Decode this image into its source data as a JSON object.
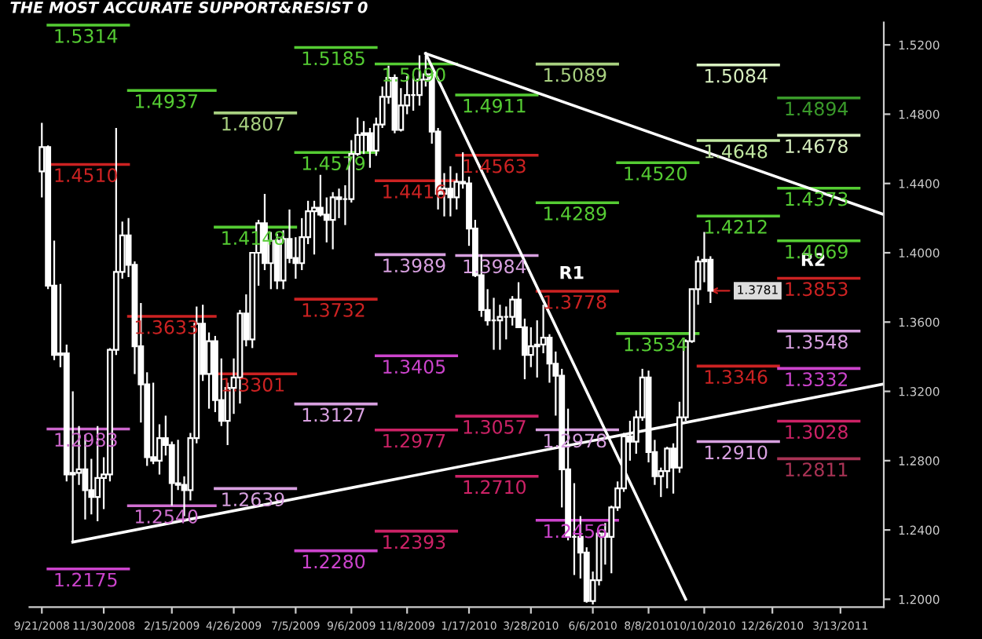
{
  "chart_data": {
    "type": "candlestick",
    "title": "THE MOST ACCURATE SUPPORT&RESIST 0",
    "color": "#ffffff",
    "x": [
      "2008-09-21",
      "2008-09-28",
      "2008-10-05",
      "2008-10-12",
      "2008-10-19",
      "2008-10-26",
      "2008-11-02",
      "2008-11-09",
      "2008-11-16",
      "2008-11-23",
      "2008-11-30",
      "2008-12-07",
      "2008-12-14",
      "2008-12-21",
      "2008-12-28",
      "2009-01-04",
      "2009-01-11",
      "2009-01-18",
      "2009-01-25",
      "2009-02-01",
      "2009-02-08",
      "2009-02-15",
      "2009-02-22",
      "2009-03-01",
      "2009-03-08",
      "2009-03-15",
      "2009-03-22",
      "2009-03-29",
      "2009-04-05",
      "2009-04-12",
      "2009-04-19",
      "2009-04-26",
      "2009-05-03",
      "2009-05-10",
      "2009-05-17",
      "2009-05-24",
      "2009-05-31",
      "2009-06-07",
      "2009-06-14",
      "2009-06-21",
      "2009-06-28",
      "2009-07-05",
      "2009-07-12",
      "2009-07-19",
      "2009-07-26",
      "2009-08-02",
      "2009-08-09",
      "2009-08-16",
      "2009-08-23",
      "2009-08-30",
      "2009-09-06",
      "2009-09-13",
      "2009-09-20",
      "2009-09-27",
      "2009-10-04",
      "2009-10-11",
      "2009-10-18",
      "2009-10-25",
      "2009-11-01",
      "2009-11-08",
      "2009-11-15",
      "2009-11-22",
      "2009-11-29",
      "2009-12-06",
      "2009-12-13",
      "2009-12-20",
      "2009-12-27",
      "2010-01-03",
      "2010-01-10",
      "2010-01-17",
      "2010-01-24",
      "2010-01-31",
      "2010-02-07",
      "2010-02-14",
      "2010-02-21",
      "2010-02-28",
      "2010-03-07",
      "2010-03-14",
      "2010-03-21",
      "2010-03-28",
      "2010-04-04",
      "2010-04-11",
      "2010-04-18",
      "2010-04-25",
      "2010-05-02",
      "2010-05-09",
      "2010-05-16",
      "2010-05-23",
      "2010-05-30",
      "2010-06-06",
      "2010-06-13",
      "2010-06-20",
      "2010-06-27",
      "2010-07-04",
      "2010-07-11",
      "2010-07-18",
      "2010-07-25",
      "2010-08-01",
      "2010-08-08",
      "2010-08-15",
      "2010-08-22",
      "2010-08-29",
      "2010-09-05",
      "2010-09-12",
      "2010-09-19",
      "2010-09-26",
      "2010-10-03",
      "2010-10-10",
      "2010-10-17"
    ],
    "ohlc": [
      [
        1.447,
        1.475,
        1.432,
        1.461
      ],
      [
        1.461,
        1.462,
        1.379,
        1.381
      ],
      [
        1.381,
        1.407,
        1.338,
        1.341
      ],
      [
        1.341,
        1.382,
        1.334,
        1.342
      ],
      [
        1.342,
        1.347,
        1.268,
        1.272
      ],
      [
        1.272,
        1.32,
        1.233,
        1.273
      ],
      [
        1.273,
        1.3,
        1.266,
        1.275
      ],
      [
        1.275,
        1.295,
        1.246,
        1.263
      ],
      [
        1.263,
        1.281,
        1.249,
        1.259
      ],
      [
        1.259,
        1.3,
        1.245,
        1.27
      ],
      [
        1.27,
        1.282,
        1.252,
        1.272
      ],
      [
        1.272,
        1.345,
        1.268,
        1.344
      ],
      [
        1.344,
        1.472,
        1.341,
        1.389
      ],
      [
        1.389,
        1.418,
        1.385,
        1.41
      ],
      [
        1.41,
        1.42,
        1.386,
        1.393
      ],
      [
        1.393,
        1.395,
        1.33,
        1.346
      ],
      [
        1.346,
        1.371,
        1.302,
        1.324
      ],
      [
        1.324,
        1.331,
        1.277,
        1.282
      ],
      [
        1.282,
        1.325,
        1.278,
        1.28
      ],
      [
        1.28,
        1.301,
        1.272,
        1.293
      ],
      [
        1.293,
        1.306,
        1.283,
        1.289
      ],
      [
        1.289,
        1.291,
        1.254,
        1.267
      ],
      [
        1.267,
        1.292,
        1.263,
        1.266
      ],
      [
        1.266,
        1.271,
        1.248,
        1.263
      ],
      [
        1.263,
        1.296,
        1.257,
        1.293
      ],
      [
        1.293,
        1.369,
        1.29,
        1.359
      ],
      [
        1.359,
        1.37,
        1.326,
        1.33
      ],
      [
        1.33,
        1.354,
        1.31,
        1.349
      ],
      [
        1.349,
        1.352,
        1.308,
        1.315
      ],
      [
        1.315,
        1.339,
        1.3,
        1.303
      ],
      [
        1.303,
        1.325,
        1.289,
        1.322
      ],
      [
        1.322,
        1.339,
        1.307,
        1.328
      ],
      [
        1.328,
        1.367,
        1.313,
        1.365
      ],
      [
        1.365,
        1.376,
        1.346,
        1.35
      ],
      [
        1.35,
        1.4,
        1.345,
        1.4
      ],
      [
        1.4,
        1.419,
        1.381,
        1.417
      ],
      [
        1.417,
        1.434,
        1.39,
        1.394
      ],
      [
        1.394,
        1.412,
        1.379,
        1.407
      ],
      [
        1.407,
        1.411,
        1.379,
        1.384
      ],
      [
        1.384,
        1.413,
        1.379,
        1.408
      ],
      [
        1.408,
        1.425,
        1.394,
        1.397
      ],
      [
        1.397,
        1.409,
        1.385,
        1.394
      ],
      [
        1.394,
        1.42,
        1.39,
        1.409
      ],
      [
        1.409,
        1.43,
        1.405,
        1.424
      ],
      [
        1.424,
        1.43,
        1.399,
        1.426
      ],
      [
        1.426,
        1.445,
        1.421,
        1.422
      ],
      [
        1.422,
        1.432,
        1.406,
        1.419
      ],
      [
        1.419,
        1.435,
        1.402,
        1.432
      ],
      [
        1.432,
        1.437,
        1.42,
        1.431
      ],
      [
        1.431,
        1.439,
        1.416,
        1.431
      ],
      [
        1.431,
        1.465,
        1.429,
        1.457
      ],
      [
        1.457,
        1.478,
        1.456,
        1.468
      ],
      [
        1.468,
        1.476,
        1.457,
        1.469
      ],
      [
        1.469,
        1.472,
        1.449,
        1.459
      ],
      [
        1.459,
        1.478,
        1.456,
        1.474
      ],
      [
        1.474,
        1.496,
        1.472,
        1.49
      ],
      [
        1.49,
        1.508,
        1.486,
        1.501
      ],
      [
        1.501,
        1.503,
        1.469,
        1.471
      ],
      [
        1.471,
        1.495,
        1.47,
        1.485
      ],
      [
        1.485,
        1.502,
        1.48,
        1.491
      ],
      [
        1.491,
        1.502,
        1.482,
        1.491
      ],
      [
        1.491,
        1.514,
        1.485,
        1.5
      ],
      [
        1.5,
        1.514,
        1.496,
        1.503
      ],
      [
        1.503,
        1.504,
        1.463,
        1.47
      ],
      [
        1.47,
        1.472,
        1.425,
        1.434
      ],
      [
        1.434,
        1.446,
        1.421,
        1.437
      ],
      [
        1.437,
        1.45,
        1.421,
        1.432
      ],
      [
        1.432,
        1.446,
        1.425,
        1.441
      ],
      [
        1.441,
        1.458,
        1.437,
        1.44
      ],
      [
        1.44,
        1.444,
        1.404,
        1.414
      ],
      [
        1.414,
        1.419,
        1.386,
        1.387
      ],
      [
        1.387,
        1.399,
        1.363,
        1.367
      ],
      [
        1.367,
        1.379,
        1.358,
        1.361
      ],
      [
        1.361,
        1.374,
        1.344,
        1.361
      ],
      [
        1.361,
        1.37,
        1.344,
        1.363
      ],
      [
        1.363,
        1.369,
        1.35,
        1.363
      ],
      [
        1.363,
        1.375,
        1.358,
        1.373
      ],
      [
        1.373,
        1.383,
        1.357,
        1.357
      ],
      [
        1.357,
        1.362,
        1.327,
        1.341
      ],
      [
        1.341,
        1.357,
        1.334,
        1.346
      ],
      [
        1.346,
        1.361,
        1.328,
        1.347
      ],
      [
        1.347,
        1.37,
        1.342,
        1.351
      ],
      [
        1.351,
        1.353,
        1.325,
        1.336
      ],
      [
        1.336,
        1.343,
        1.306,
        1.329
      ],
      [
        1.329,
        1.333,
        1.253,
        1.275
      ],
      [
        1.275,
        1.31,
        1.234,
        1.236
      ],
      [
        1.236,
        1.267,
        1.214,
        1.236
      ],
      [
        1.236,
        1.248,
        1.212,
        1.227
      ],
      [
        1.227,
        1.23,
        1.198,
        1.199
      ],
      [
        1.199,
        1.216,
        1.197,
        1.211
      ],
      [
        1.211,
        1.239,
        1.208,
        1.238
      ],
      [
        1.238,
        1.244,
        1.22,
        1.236
      ],
      [
        1.236,
        1.254,
        1.215,
        1.253
      ],
      [
        1.253,
        1.268,
        1.251,
        1.264
      ],
      [
        1.264,
        1.296,
        1.262,
        1.294
      ],
      [
        1.294,
        1.303,
        1.28,
        1.291
      ],
      [
        1.291,
        1.309,
        1.284,
        1.305
      ],
      [
        1.305,
        1.333,
        1.303,
        1.328
      ],
      [
        1.328,
        1.332,
        1.279,
        1.285
      ],
      [
        1.285,
        1.292,
        1.266,
        1.271
      ],
      [
        1.271,
        1.276,
        1.259,
        1.274
      ],
      [
        1.274,
        1.288,
        1.264,
        1.287
      ],
      [
        1.287,
        1.29,
        1.261,
        1.276
      ],
      [
        1.276,
        1.314,
        1.273,
        1.305
      ],
      [
        1.305,
        1.35,
        1.303,
        1.349
      ],
      [
        1.349,
        1.379,
        1.348,
        1.379
      ],
      [
        1.379,
        1.398,
        1.37,
        1.395
      ],
      [
        1.395,
        1.412,
        1.383,
        1.396
      ],
      [
        1.396,
        1.398,
        1.371,
        1.3781
      ]
    ],
    "series": [
      {
        "type": "line",
        "x": [
          "2008-09-28",
          "2008-12-28"
        ],
        "values": [
          1.5314,
          1.5314
        ],
        "color": "#55cc33",
        "value_labels": [
          "1.5314",
          null
        ]
      },
      {
        "type": "line",
        "x": [
          "2008-09-28",
          "2008-12-28"
        ],
        "values": [
          1.451,
          1.451
        ],
        "color": "#cc2222",
        "value_labels": [
          "1.4510",
          null
        ]
      },
      {
        "type": "line",
        "x": [
          "2008-09-28",
          "2008-12-28"
        ],
        "values": [
          1.2983,
          1.2983
        ],
        "color": "#cc66cc",
        "value_labels": [
          "1.2983",
          null
        ]
      },
      {
        "type": "line",
        "x": [
          "2008-09-28",
          "2008-12-28"
        ],
        "values": [
          1.2175,
          1.2175
        ],
        "color": "#cc44cc",
        "value_labels": [
          "1.2175",
          null
        ]
      },
      {
        "type": "line",
        "x": [
          "2008-12-28",
          "2009-04-05"
        ],
        "values": [
          1.4937,
          1.4937
        ],
        "color": "#55cc33",
        "value_labels": [
          "1.4937",
          null
        ]
      },
      {
        "type": "line",
        "x": [
          "2008-12-28",
          "2009-04-05"
        ],
        "values": [
          1.3633,
          1.3633
        ],
        "color": "#cc2222",
        "value_labels": [
          "1.3633",
          null
        ]
      },
      {
        "type": "line",
        "x": [
          "2008-12-28",
          "2009-04-05"
        ],
        "values": [
          1.254,
          1.254
        ],
        "color": "#d070d0",
        "value_labels": [
          "1.2540",
          null
        ]
      },
      {
        "type": "line",
        "x": [
          "2009-04-05",
          "2009-07-05"
        ],
        "values": [
          1.4807,
          1.4807
        ],
        "color": "#a8d080",
        "value_labels": [
          "1.4807",
          null
        ]
      },
      {
        "type": "line",
        "x": [
          "2009-04-05",
          "2009-07-05"
        ],
        "values": [
          1.4148,
          1.4148
        ],
        "color": "#55cc33",
        "value_labels": [
          "1.4148",
          null
        ]
      },
      {
        "type": "line",
        "x": [
          "2009-04-05",
          "2009-07-05"
        ],
        "values": [
          1.3301,
          1.3301
        ],
        "color": "#cc2222",
        "value_labels": [
          "1.3301",
          null
        ]
      },
      {
        "type": "line",
        "x": [
          "2009-04-05",
          "2009-07-05"
        ],
        "values": [
          1.2639,
          1.2639
        ],
        "color": "#d8a0e0",
        "value_labels": [
          "1.2639",
          null
        ]
      },
      {
        "type": "line",
        "x": [
          "2009-07-05",
          "2009-10-04"
        ],
        "values": [
          1.5185,
          1.5185
        ],
        "color": "#55cc33",
        "value_labels": [
          "1.5185",
          null
        ]
      },
      {
        "type": "line",
        "x": [
          "2009-07-05",
          "2009-10-04"
        ],
        "values": [
          1.4579,
          1.4579
        ],
        "color": "#55cc33",
        "value_labels": [
          "1.4579",
          null
        ]
      },
      {
        "type": "line",
        "x": [
          "2009-07-05",
          "2009-10-04"
        ],
        "values": [
          1.3732,
          1.3732
        ],
        "color": "#cc2222",
        "value_labels": [
          "1.3732",
          null
        ]
      },
      {
        "type": "line",
        "x": [
          "2009-07-05",
          "2009-10-04"
        ],
        "values": [
          1.3127,
          1.3127
        ],
        "color": "#d8a0e0",
        "value_labels": [
          "1.3127",
          null
        ]
      },
      {
        "type": "line",
        "x": [
          "2009-07-05",
          "2009-10-04"
        ],
        "values": [
          1.228,
          1.228
        ],
        "color": "#cc44cc",
        "value_labels": [
          "1.2280",
          null
        ]
      },
      {
        "type": "line",
        "x": [
          "2009-10-04",
          "2010-01-03"
        ],
        "values": [
          1.509,
          1.509
        ],
        "color": "#55cc33",
        "value_labels": [
          "1.5090",
          null
        ]
      },
      {
        "type": "line",
        "x": [
          "2009-10-04",
          "2010-01-03"
        ],
        "values": [
          1.4416,
          1.4416
        ],
        "color": "#cc2222",
        "value_labels": [
          "1.4416",
          null
        ]
      },
      {
        "type": "line",
        "x": [
          "2009-10-04",
          "2009-12-20"
        ],
        "values": [
          1.3989,
          1.3989
        ],
        "color": "#d8a0e0",
        "value_labels": [
          "1.3989",
          null
        ]
      },
      {
        "type": "line",
        "x": [
          "2009-10-04",
          "2010-01-03"
        ],
        "values": [
          1.3405,
          1.3405
        ],
        "color": "#cc44cc",
        "value_labels": [
          "1.3405",
          null
        ]
      },
      {
        "type": "line",
        "x": [
          "2009-10-04",
          "2010-01-03"
        ],
        "values": [
          1.2977,
          1.2977
        ],
        "color": "#cc2266",
        "value_labels": [
          "1.2977",
          null
        ]
      },
      {
        "type": "line",
        "x": [
          "2009-10-04",
          "2010-01-03"
        ],
        "values": [
          1.2393,
          1.2393
        ],
        "color": "#cc2266",
        "value_labels": [
          "1.2393",
          null
        ]
      },
      {
        "type": "line",
        "x": [
          "2010-01-03",
          "2010-04-04"
        ],
        "values": [
          1.4911,
          1.4911
        ],
        "color": "#55cc33",
        "value_labels": [
          "1.4911",
          null
        ]
      },
      {
        "type": "line",
        "x": [
          "2010-01-03",
          "2010-04-04"
        ],
        "values": [
          1.4563,
          1.4563
        ],
        "color": "#cc2222",
        "value_labels": [
          "1.4563",
          null
        ]
      },
      {
        "type": "line",
        "x": [
          "2010-01-03",
          "2010-04-04"
        ],
        "values": [
          1.3984,
          1.3984
        ],
        "color": "#d8a0e0",
        "value_labels": [
          "1.3984",
          null
        ]
      },
      {
        "type": "line",
        "x": [
          "2010-01-03",
          "2010-04-04"
        ],
        "values": [
          1.3057,
          1.3057
        ],
        "color": "#cc2266",
        "value_labels": [
          "1.3057",
          null
        ]
      },
      {
        "type": "line",
        "x": [
          "2010-01-03",
          "2010-04-04"
        ],
        "values": [
          1.271,
          1.271
        ],
        "color": "#cc2266",
        "value_labels": [
          "1.2710",
          null
        ]
      },
      {
        "type": "line",
        "x": [
          "2010-04-04",
          "2010-07-04"
        ],
        "values": [
          1.5089,
          1.5089
        ],
        "color": "#a8d080",
        "value_labels": [
          "1.5089",
          null
        ]
      },
      {
        "type": "line",
        "x": [
          "2010-04-04",
          "2010-07-04"
        ],
        "values": [
          1.4289,
          1.4289
        ],
        "color": "#55cc33",
        "value_labels": [
          "1.4289",
          null
        ]
      },
      {
        "type": "line",
        "x": [
          "2010-04-04",
          "2010-07-04"
        ],
        "values": [
          1.3778,
          1.3778
        ],
        "color": "#cc2222",
        "value_labels": [
          "1.3778",
          null
        ]
      },
      {
        "type": "line",
        "x": [
          "2010-04-04",
          "2010-07-04"
        ],
        "values": [
          1.2978,
          1.2978
        ],
        "color": "#d8a0e0",
        "value_labels": [
          "1.2978",
          null
        ]
      },
      {
        "type": "line",
        "x": [
          "2010-04-04",
          "2010-07-04"
        ],
        "values": [
          1.2456,
          1.2456
        ],
        "color": "#cc44cc",
        "value_labels": [
          "1.2456",
          null
        ]
      },
      {
        "type": "line",
        "x": [
          "2010-07-04",
          "2010-10-03"
        ],
        "values": [
          1.452,
          1.452
        ],
        "color": "#55cc33",
        "value_labels": [
          "1.4520",
          null
        ]
      },
      {
        "type": "line",
        "x": [
          "2010-07-04",
          "2010-10-03"
        ],
        "values": [
          1.3534,
          1.3534
        ],
        "color": "#55cc33",
        "value_labels": [
          "1.3534",
          null
        ]
      },
      {
        "type": "line",
        "x": [
          "2010-10-03",
          "2011-01-02"
        ],
        "values": [
          1.5084,
          1.5084
        ],
        "color": "#d8f0c0",
        "value_labels": [
          "1.5084",
          null
        ]
      },
      {
        "type": "line",
        "x": [
          "2010-10-03",
          "2011-01-02"
        ],
        "values": [
          1.4648,
          1.4648
        ],
        "color": "#c0e8a0",
        "value_labels": [
          "1.4648",
          null
        ]
      },
      {
        "type": "line",
        "x": [
          "2010-10-03",
          "2011-01-02"
        ],
        "values": [
          1.4212,
          1.4212
        ],
        "color": "#55cc33",
        "value_labels": [
          "1.4212",
          null
        ]
      },
      {
        "type": "line",
        "x": [
          "2010-10-03",
          "2011-01-02"
        ],
        "values": [
          1.3346,
          1.3346
        ],
        "color": "#cc2222",
        "value_labels": [
          "1.3346",
          null
        ]
      },
      {
        "type": "line",
        "x": [
          "2010-10-03",
          "2011-01-02"
        ],
        "values": [
          1.291,
          1.291
        ],
        "color": "#d8a0e0",
        "value_labels": [
          "1.2910",
          null
        ]
      },
      {
        "type": "line",
        "x": [
          "2011-01-02",
          "2011-04-03"
        ],
        "values": [
          1.4894,
          1.4894
        ],
        "color": "#3a9a2a",
        "value_labels": [
          "1.4894",
          null
        ]
      },
      {
        "type": "line",
        "x": [
          "2011-01-02",
          "2011-04-03"
        ],
        "values": [
          1.4678,
          1.4678
        ],
        "color": "#d8f0c0",
        "value_labels": [
          "1.4678",
          null
        ]
      },
      {
        "type": "line",
        "x": [
          "2011-01-02",
          "2011-04-03"
        ],
        "values": [
          1.4373,
          1.4373
        ],
        "color": "#55cc33",
        "value_labels": [
          "1.4373",
          null
        ]
      },
      {
        "type": "line",
        "x": [
          "2011-01-02",
          "2011-04-03"
        ],
        "values": [
          1.4069,
          1.4069
        ],
        "color": "#55cc33",
        "value_labels": [
          "1.4069",
          null
        ]
      },
      {
        "type": "line",
        "x": [
          "2011-01-02",
          "2011-04-03"
        ],
        "values": [
          1.3853,
          1.3853
        ],
        "color": "#cc2222",
        "value_labels": [
          "1.3853",
          null
        ]
      },
      {
        "type": "line",
        "x": [
          "2011-01-02",
          "2011-04-03"
        ],
        "values": [
          1.3548,
          1.3548
        ],
        "color": "#d8a0e0",
        "value_labels": [
          "1.3548",
          null
        ]
      },
      {
        "type": "line",
        "x": [
          "2011-01-02",
          "2011-04-03"
        ],
        "values": [
          1.3332,
          1.3332
        ],
        "color": "#cc44cc",
        "value_labels": [
          "1.3332",
          null
        ]
      },
      {
        "type": "line",
        "x": [
          "2011-01-02",
          "2011-04-03"
        ],
        "values": [
          1.3028,
          1.3028
        ],
        "color": "#cc2266",
        "value_labels": [
          "1.3028",
          null
        ]
      },
      {
        "type": "line",
        "x": [
          "2011-01-02",
          "2011-04-03"
        ],
        "values": [
          1.2811,
          1.2811
        ],
        "color": "#aa3355",
        "value_labels": [
          "1.2811",
          null
        ]
      },
      {
        "type": "line",
        "x": [
          "2009-11-29",
          "2011-05-01"
        ],
        "values": [
          1.515,
          1.4221
        ],
        "color": "#ffffff"
      },
      {
        "type": "line",
        "x": [
          "2009-11-29",
          "2010-09-19"
        ],
        "values": [
          1.515,
          1.2
        ],
        "color": "#ffffff"
      },
      {
        "type": "line",
        "x": [
          "2008-10-26",
          "2011-05-01"
        ],
        "values": [
          1.233,
          1.3243
        ],
        "color": "#ffffff"
      }
    ],
    "annotations": [
      {
        "text": "R1",
        "x": "2010-04-04",
        "y": 1.3778
      },
      {
        "text": "R2",
        "x": "2011-01-02",
        "y": 1.3853
      },
      {
        "text": "1.3781",
        "x": "2010-10-17",
        "y": 1.3781
      }
    ],
    "xlim": [
      "2008-09-07",
      "2011-05-01"
    ],
    "xticks": [
      {
        "value": "2008-09-21",
        "label": "9/21/2008"
      },
      {
        "value": "2008-11-30",
        "label": "11/30/2008"
      },
      {
        "value": "2009-02-15",
        "label": "2/15/2009"
      },
      {
        "value": "2009-04-26",
        "label": "4/26/2009"
      },
      {
        "value": "2009-07-05",
        "label": "7/5/2009"
      },
      {
        "value": "2009-09-06",
        "label": "9/6/2009"
      },
      {
        "value": "2009-11-08",
        "label": "11/8/2009"
      },
      {
        "value": "2010-01-17",
        "label": "1/17/2010"
      },
      {
        "value": "2010-03-28",
        "label": "3/28/2010"
      },
      {
        "value": "2010-06-06",
        "label": "6/6/2010"
      },
      {
        "value": "2010-08-08",
        "label": "8/8/2010"
      },
      {
        "value": "2010-10-10",
        "label": "10/10/2010"
      },
      {
        "value": "2010-12-26",
        "label": "12/26/2010"
      },
      {
        "value": "2011-03-13",
        "label": "3/13/2011"
      }
    ],
    "ylim": [
      1.1955,
      1.533
    ],
    "yticks": [
      {
        "value": 1.2,
        "label": "1.2000"
      },
      {
        "value": 1.24,
        "label": "1.2400"
      },
      {
        "value": 1.28,
        "label": "1.2800"
      },
      {
        "value": 1.32,
        "label": "1.3200"
      },
      {
        "value": 1.36,
        "label": "1.3600"
      },
      {
        "value": 1.4,
        "label": "1.4000"
      },
      {
        "value": 1.44,
        "label": "1.4400"
      },
      {
        "value": 1.48,
        "label": "1.4800"
      },
      {
        "value": 1.52,
        "label": "1.5200"
      }
    ],
    "grid": false
  }
}
